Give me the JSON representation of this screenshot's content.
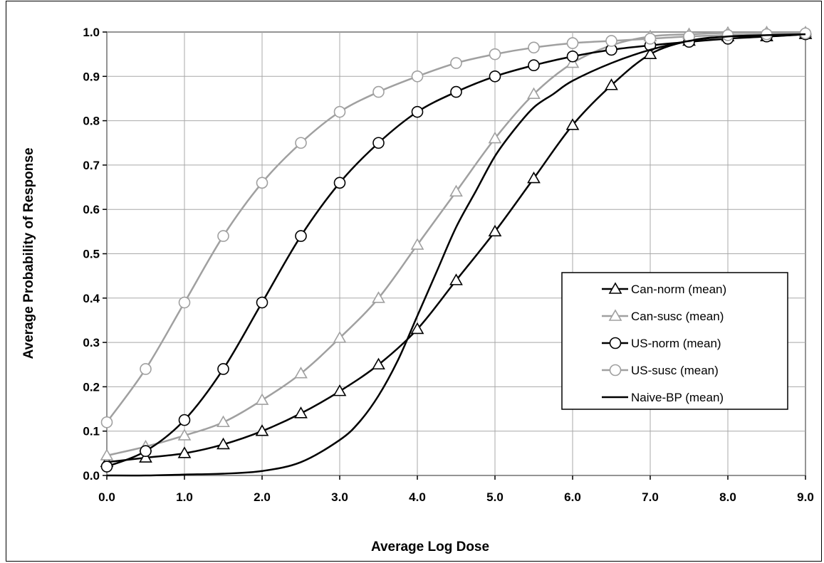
{
  "chart_data": {
    "type": "line",
    "title": "",
    "xlabel": "Average Log Dose",
    "ylabel": "Average Probability of Response",
    "xlim": [
      0,
      9
    ],
    "ylim": [
      0,
      1
    ],
    "x_ticks": [
      "0.0",
      "1.0",
      "2.0",
      "3.0",
      "4.0",
      "5.0",
      "6.0",
      "7.0",
      "8.0",
      "9.0"
    ],
    "y_ticks": [
      "0.0",
      "0.1",
      "0.2",
      "0.3",
      "0.4",
      "0.5",
      "0.6",
      "0.7",
      "0.8",
      "0.9",
      "1.0"
    ],
    "grid": true,
    "legend_position": "right",
    "series": [
      {
        "name": "Can-norm (mean)",
        "color": "#000000",
        "marker": "triangle",
        "x": [
          0,
          0.5,
          1,
          1.5,
          2,
          2.5,
          3,
          3.5,
          4,
          4.5,
          5,
          5.5,
          6,
          6.5,
          7,
          7.5,
          8,
          8.5,
          9
        ],
        "y": [
          0.03,
          0.04,
          0.05,
          0.07,
          0.1,
          0.14,
          0.19,
          0.25,
          0.33,
          0.44,
          0.55,
          0.67,
          0.79,
          0.88,
          0.95,
          0.98,
          0.99,
          0.99,
          0.995
        ]
      },
      {
        "name": "Can-susc (mean)",
        "color": "#a0a0a0",
        "marker": "triangle",
        "x": [
          0,
          0.5,
          1,
          1.5,
          2,
          2.5,
          3,
          3.5,
          4,
          4.5,
          5,
          5.5,
          6,
          6.5,
          7,
          7.5,
          8,
          8.5,
          9
        ],
        "y": [
          0.045,
          0.065,
          0.09,
          0.12,
          0.17,
          0.23,
          0.31,
          0.4,
          0.52,
          0.64,
          0.76,
          0.86,
          0.93,
          0.97,
          0.99,
          0.995,
          0.998,
          0.999,
          0.999
        ]
      },
      {
        "name": "US-norm (mean)",
        "color": "#000000",
        "marker": "circle",
        "x": [
          0,
          0.5,
          1,
          1.5,
          2,
          2.5,
          3,
          3.5,
          4,
          4.5,
          5,
          5.5,
          6,
          6.5,
          7,
          7.5,
          8,
          8.5,
          9
        ],
        "y": [
          0.02,
          0.055,
          0.125,
          0.24,
          0.39,
          0.54,
          0.66,
          0.75,
          0.82,
          0.865,
          0.9,
          0.925,
          0.945,
          0.96,
          0.97,
          0.978,
          0.985,
          0.99,
          0.995
        ]
      },
      {
        "name": "US-susc (mean)",
        "color": "#a0a0a0",
        "marker": "circle",
        "x": [
          0,
          0.5,
          1,
          1.5,
          2,
          2.5,
          3,
          3.5,
          4,
          4.5,
          5,
          5.5,
          6,
          6.5,
          7,
          7.5,
          8,
          8.5,
          9
        ],
        "y": [
          0.12,
          0.24,
          0.39,
          0.54,
          0.66,
          0.75,
          0.82,
          0.865,
          0.9,
          0.93,
          0.95,
          0.965,
          0.975,
          0.98,
          0.985,
          0.99,
          0.993,
          0.995,
          0.997
        ]
      },
      {
        "name": "Naive-BP (mean)",
        "color": "#000000",
        "marker": "none",
        "x": [
          0,
          0.5,
          1,
          1.5,
          2,
          2.5,
          3,
          3.25,
          3.5,
          3.75,
          4,
          4.25,
          4.5,
          4.75,
          5,
          5.25,
          5.5,
          5.75,
          6,
          6.5,
          7,
          7.5,
          8,
          8.5,
          9
        ],
        "y": [
          0.0,
          0.0,
          0.002,
          0.004,
          0.01,
          0.03,
          0.08,
          0.12,
          0.18,
          0.26,
          0.36,
          0.46,
          0.56,
          0.64,
          0.72,
          0.78,
          0.83,
          0.86,
          0.89,
          0.93,
          0.96,
          0.98,
          0.99,
          0.993,
          0.995
        ]
      }
    ]
  }
}
